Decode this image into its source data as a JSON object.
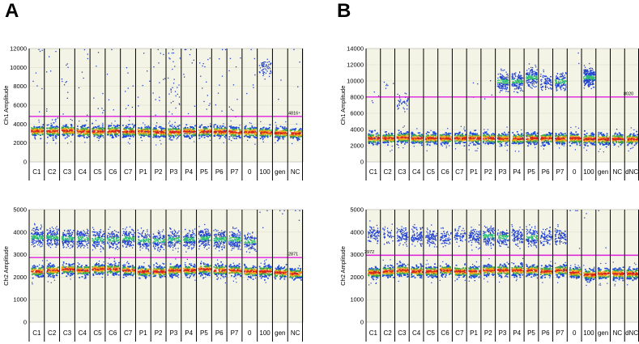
{
  "panels": [
    {
      "id": "A",
      "label": "A"
    },
    {
      "id": "B",
      "label": "B"
    }
  ],
  "chart_data": [
    {
      "type": "scatter",
      "panel": "A",
      "ylabel": "Ch1 Amplitude",
      "ylim": [
        0,
        12000
      ],
      "yticks": [
        0,
        2000,
        4000,
        6000,
        8000,
        10000,
        12000
      ],
      "threshold": 4816,
      "threshold_label": "4816",
      "wells": [
        "C1",
        "C2",
        "C3",
        "C4",
        "C5",
        "C6",
        "C7",
        "P1",
        "P2",
        "P3",
        "P4",
        "P5",
        "P6",
        "P7",
        "0",
        "100",
        "gen",
        "NC"
      ],
      "neg_band": [
        3250,
        3250,
        3300,
        3200,
        3200,
        3250,
        3200,
        3200,
        3150,
        3150,
        3200,
        3200,
        3200,
        3150,
        3150,
        3100,
        3050,
        3000
      ],
      "pos_band": [
        0,
        0,
        0,
        0,
        0,
        0,
        0,
        0,
        0,
        0,
        0,
        0,
        0,
        0,
        0,
        10000,
        0,
        0
      ],
      "pos_density": [
        8,
        10,
        12,
        8,
        8,
        5,
        10,
        6,
        14,
        32,
        10,
        14,
        8,
        10,
        6,
        60,
        2,
        4
      ]
    },
    {
      "type": "scatter",
      "panel": "A",
      "ylabel": "Ch2 Amplitude",
      "ylim": [
        0,
        5000
      ],
      "yticks": [
        0,
        1000,
        2000,
        3000,
        4000,
        5000
      ],
      "threshold": 2871,
      "threshold_label": "2871",
      "wells": [
        "C1",
        "C2",
        "C3",
        "C4",
        "C5",
        "C6",
        "C7",
        "P1",
        "P2",
        "P3",
        "P4",
        "P5",
        "P6",
        "P7",
        "0",
        "100",
        "gen",
        "NC"
      ],
      "neg_band": [
        2250,
        2300,
        2350,
        2300,
        2350,
        2350,
        2300,
        2250,
        2250,
        2300,
        2300,
        2350,
        2300,
        2300,
        2250,
        2250,
        2200,
        2150
      ],
      "pos_band": [
        3800,
        3800,
        3750,
        3750,
        3700,
        3700,
        3750,
        3650,
        3650,
        3700,
        3700,
        3750,
        3700,
        3700,
        3600,
        0,
        0,
        0
      ],
      "pos_density": [
        170,
        170,
        160,
        150,
        140,
        140,
        160,
        130,
        130,
        140,
        160,
        170,
        160,
        160,
        120,
        4,
        3,
        3
      ]
    },
    {
      "type": "scatter",
      "panel": "B",
      "ylabel": "Ch1 Amplitude",
      "ylim": [
        0,
        14000
      ],
      "yticks": [
        0,
        2000,
        4000,
        6000,
        8000,
        10000,
        12000,
        14000
      ],
      "threshold": 8020,
      "threshold_label": "8020",
      "wells": [
        "C1",
        "C2",
        "C3",
        "C4",
        "C5",
        "C6",
        "C7",
        "P1",
        "P2",
        "P3",
        "P4",
        "P5",
        "P6",
        "P7",
        "0",
        "100",
        "gen",
        "NC",
        "dNC"
      ],
      "neg_band": [
        2900,
        2900,
        3000,
        2900,
        2900,
        2900,
        2900,
        2900,
        2900,
        2850,
        2850,
        2900,
        2900,
        2850,
        2900,
        2800,
        2800,
        2800,
        2800
      ],
      "pos_band": [
        8000,
        9500,
        7500,
        0,
        0,
        0,
        0,
        9000,
        9000,
        10000,
        10000,
        10500,
        10000,
        10000,
        0,
        10500,
        0,
        0,
        0
      ],
      "pos_density": [
        4,
        6,
        40,
        0,
        0,
        0,
        0,
        3,
        3,
        160,
        160,
        170,
        80,
        140,
        2,
        260,
        0,
        0,
        0
      ]
    },
    {
      "type": "scatter",
      "panel": "B",
      "ylabel": "Ch2 Amplitude",
      "ylim": [
        0,
        5000
      ],
      "yticks": [
        0,
        1000,
        2000,
        3000,
        4000,
        5000
      ],
      "threshold": 2972,
      "threshold_label": "2972",
      "wells": [
        "C1",
        "C2",
        "C3",
        "C4",
        "C5",
        "C6",
        "C7",
        "P1",
        "P2",
        "P3",
        "P4",
        "P5",
        "P6",
        "P7",
        "0",
        "100",
        "gen",
        "NC",
        "dNC"
      ],
      "neg_band": [
        2200,
        2250,
        2300,
        2250,
        2250,
        2300,
        2250,
        2250,
        2300,
        2300,
        2300,
        2300,
        2250,
        2300,
        2200,
        2100,
        2150,
        2150,
        2150
      ],
      "pos_band": [
        3950,
        3900,
        3850,
        3850,
        3800,
        3800,
        3850,
        3800,
        3850,
        3800,
        3850,
        3800,
        3800,
        3850,
        0,
        0,
        0,
        0,
        0
      ],
      "pos_density": [
        80,
        40,
        90,
        100,
        90,
        70,
        60,
        100,
        140,
        120,
        100,
        120,
        80,
        90,
        4,
        2,
        2,
        0,
        0
      ]
    }
  ]
}
